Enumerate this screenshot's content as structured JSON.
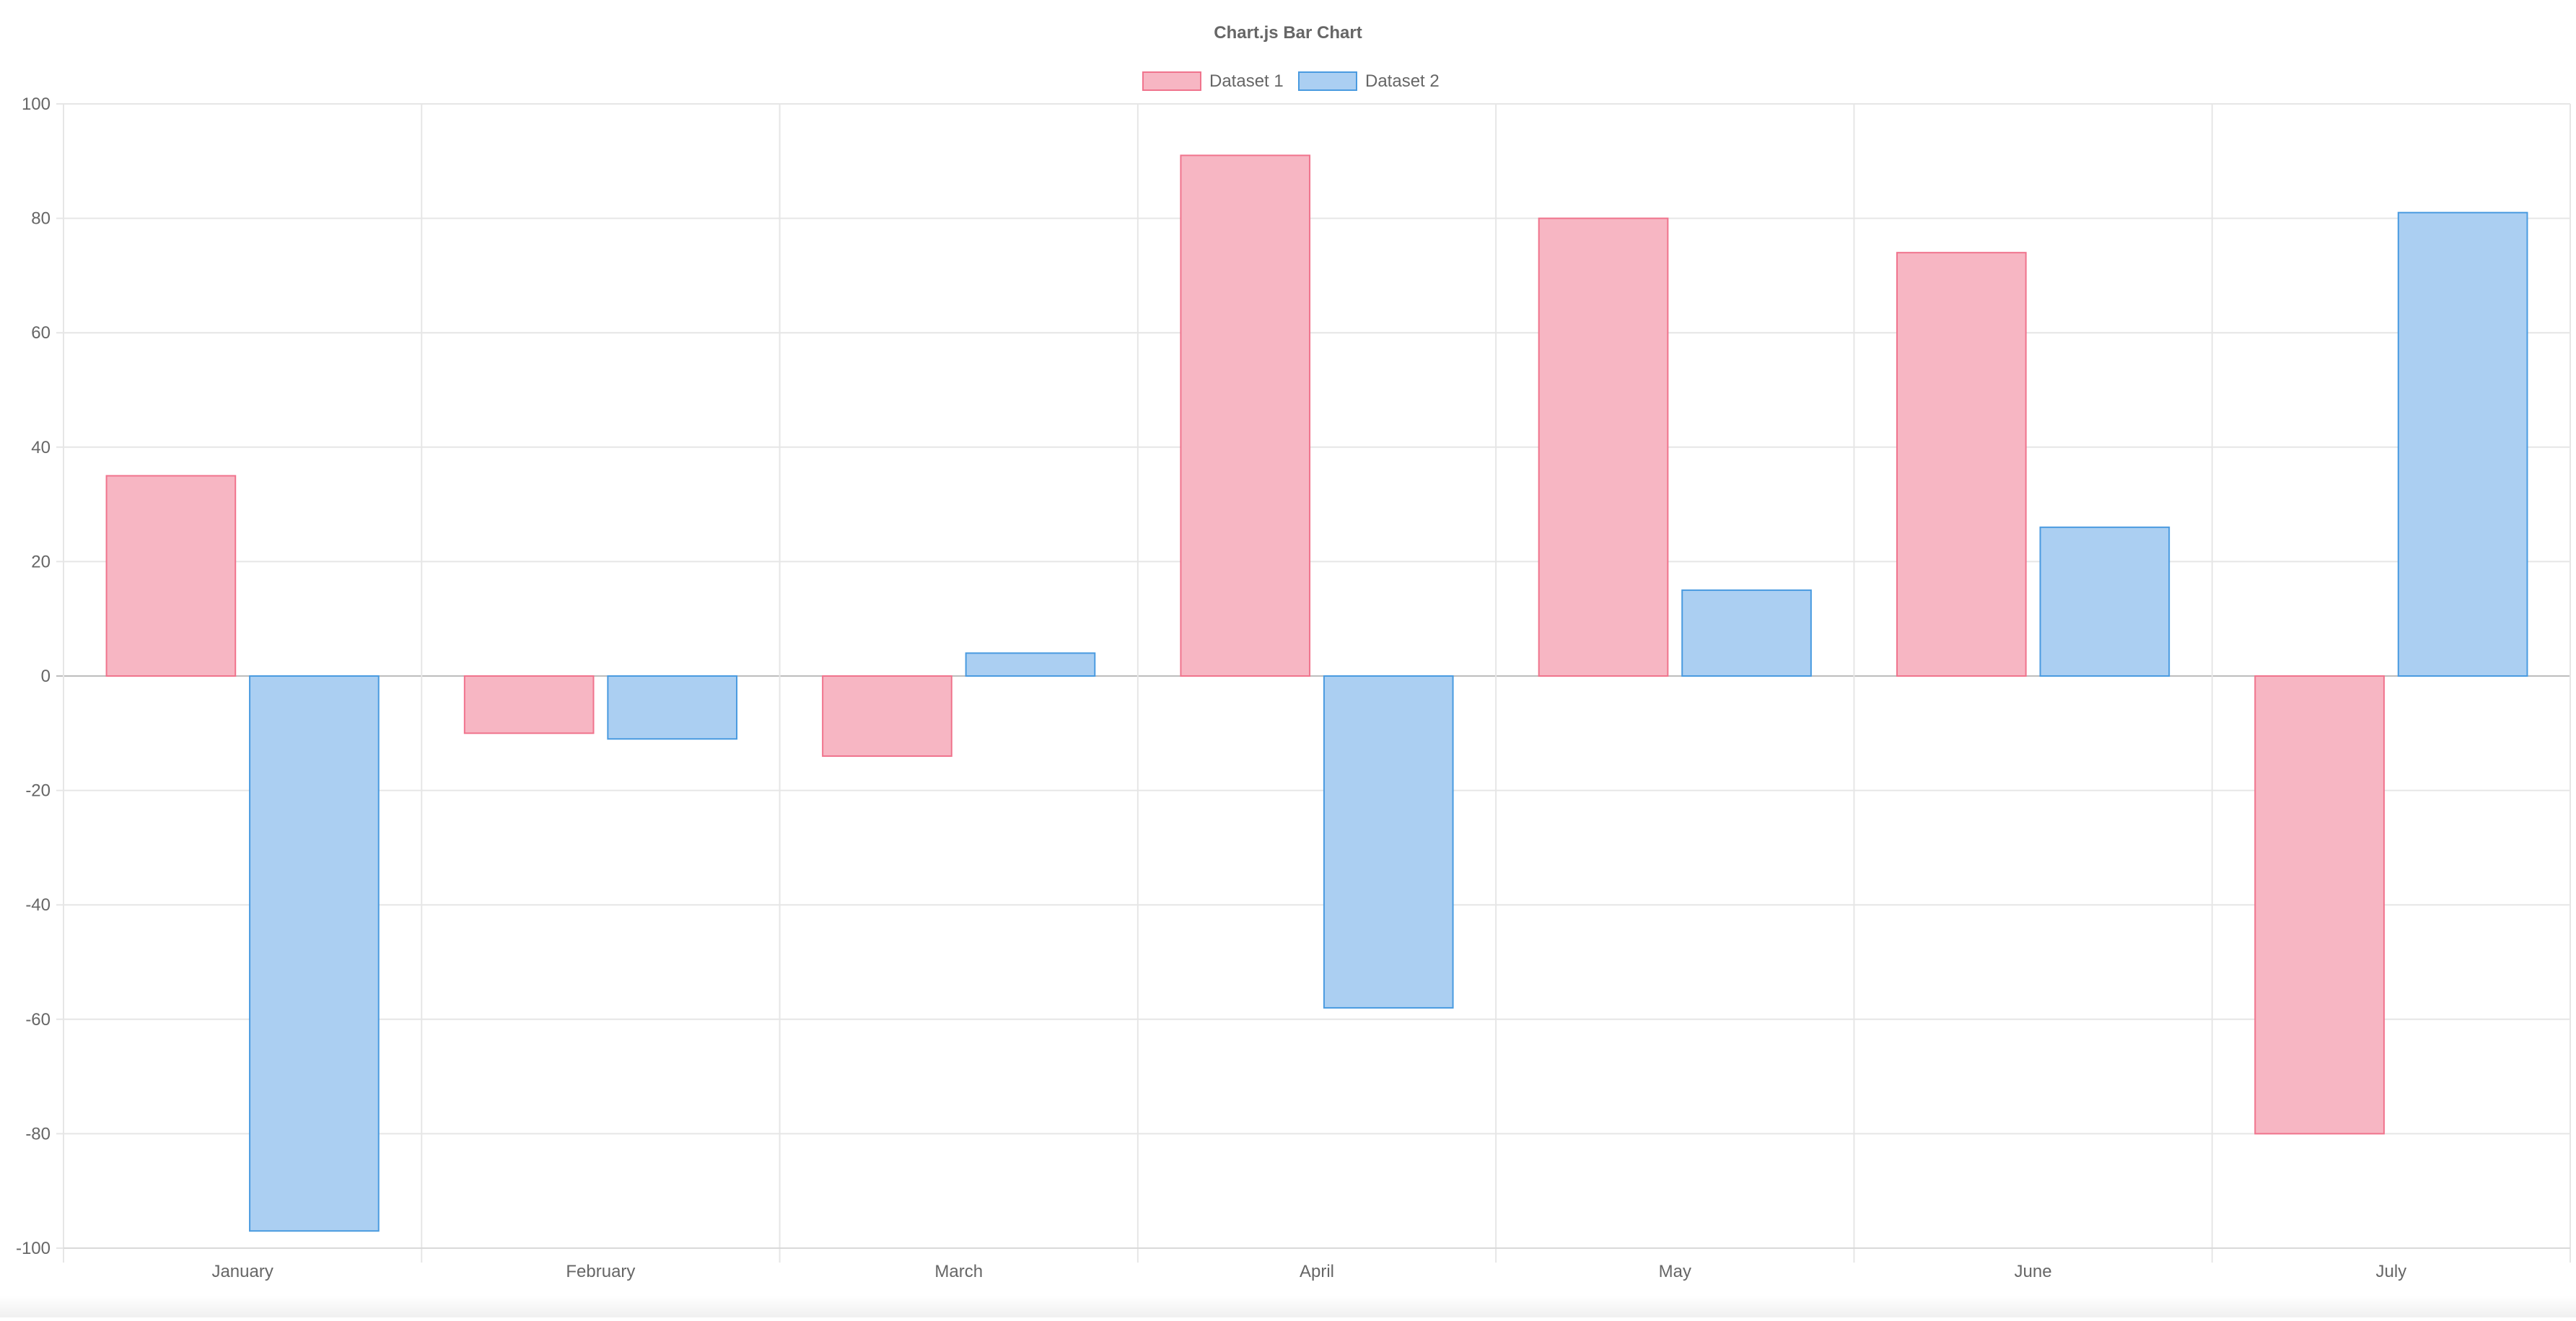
{
  "chart_data": {
    "type": "bar",
    "title": "Chart.js Bar Chart",
    "categories": [
      "January",
      "February",
      "March",
      "April",
      "May",
      "June",
      "July"
    ],
    "series": [
      {
        "name": "Dataset 1",
        "values": [
          35,
          -10,
          -14,
          91,
          80,
          74,
          -80
        ],
        "fill": "#f7b6c3",
        "stroke": "#f0748d"
      },
      {
        "name": "Dataset 2",
        "values": [
          -97,
          -11,
          4,
          -58,
          15,
          26,
          81
        ],
        "fill": "#abcff2",
        "stroke": "#4a9be0"
      }
    ],
    "ylim": [
      -100,
      100
    ],
    "ytick_step": 20,
    "grid": true,
    "legend_position": "top",
    "xlabel": "",
    "ylabel": ""
  }
}
